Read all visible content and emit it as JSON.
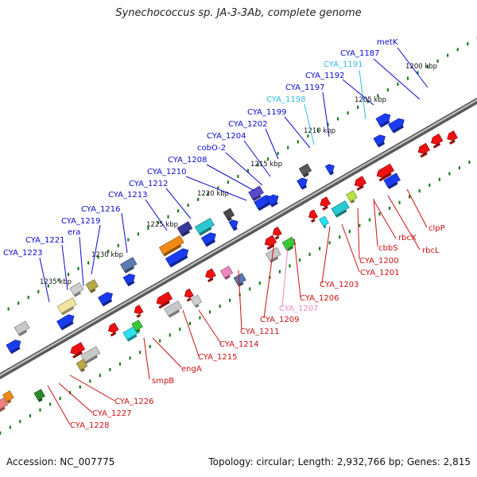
{
  "title": "Synechococcus sp. JA-3-3Ab, complete genome",
  "accession": "Accession: NC_007775",
  "summary": "Topology: circular; Length: 2,932,766 bp; Genes: 2,815",
  "colors": {
    "backbone": "#808080",
    "tick": "#1f7a1f",
    "forward_label": "#0a0ad0",
    "reverse_label": "#cc1111",
    "forward_label_light": "#33bbe6",
    "reverse_label_light": "#ee88c0"
  },
  "scale_labels": [
    "1200 kbp",
    "1205 kbp",
    "1210 kbp",
    "1215 kbp",
    "1220 kbp",
    "1225 kbp",
    "1230 kbp",
    "1235 kbp"
  ],
  "forward_labels": [
    {
      "text": "metK",
      "color": "#0a0ad0"
    },
    {
      "text": "CYA_1187",
      "color": "#0a0ad0"
    },
    {
      "text": "CYA_1191",
      "color": "#33bbe6"
    },
    {
      "text": "CYA_1192",
      "color": "#0a0ad0"
    },
    {
      "text": "CYA_1197",
      "color": "#0a0ad0"
    },
    {
      "text": "CYA_1198",
      "color": "#33bbe6"
    },
    {
      "text": "CYA_1199",
      "color": "#0a0ad0"
    },
    {
      "text": "CYA_1202",
      "color": "#0a0ad0"
    },
    {
      "text": "CYA_1204",
      "color": "#0a0ad0"
    },
    {
      "text": "cobO-2",
      "color": "#0a0ad0"
    },
    {
      "text": "CYA_1208",
      "color": "#0a0ad0"
    },
    {
      "text": "CYA_1210",
      "color": "#0a0ad0"
    },
    {
      "text": "CYA_1212",
      "color": "#0a0ad0"
    },
    {
      "text": "CYA_1213",
      "color": "#0a0ad0"
    },
    {
      "text": "CYA_1216",
      "color": "#0a0ad0"
    },
    {
      "text": "CYA_1219",
      "color": "#0a0ad0"
    },
    {
      "text": "era",
      "color": "#0a0ad0"
    },
    {
      "text": "CYA_1221",
      "color": "#0a0ad0"
    },
    {
      "text": "CYA_1223",
      "color": "#0a0ad0"
    }
  ],
  "reverse_labels": [
    {
      "text": "clpP",
      "color": "#cc1111"
    },
    {
      "text": "rbcX",
      "color": "#cc1111"
    },
    {
      "text": "rbcL",
      "color": "#cc1111"
    },
    {
      "text": "cbbS",
      "color": "#cc1111"
    },
    {
      "text": "CYA_1200",
      "color": "#cc1111"
    },
    {
      "text": "CYA_1201",
      "color": "#cc1111"
    },
    {
      "text": "CYA_1203",
      "color": "#cc1111"
    },
    {
      "text": "CYA_1206",
      "color": "#cc1111"
    },
    {
      "text": "CYA_1207",
      "color": "#ee88c0"
    },
    {
      "text": "CYA_1209",
      "color": "#cc1111"
    },
    {
      "text": "CYA_1211",
      "color": "#cc1111"
    },
    {
      "text": "CYA_1214",
      "color": "#cc1111"
    },
    {
      "text": "CYA_1215",
      "color": "#cc1111"
    },
    {
      "text": "engA",
      "color": "#cc1111"
    },
    {
      "text": "smpB",
      "color": "#cc1111"
    },
    {
      "text": "CYA_1226",
      "color": "#cc1111"
    },
    {
      "text": "CYA_1227",
      "color": "#cc1111"
    },
    {
      "text": "CYA_1228",
      "color": "#cc1111"
    }
  ]
}
